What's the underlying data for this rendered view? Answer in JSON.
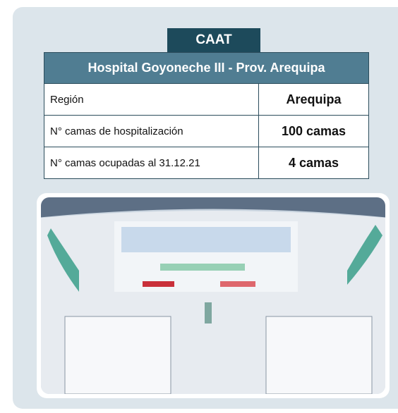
{
  "tab": "CAAT",
  "table": {
    "title": "Hospital Goyoneche III - Prov. Arequipa",
    "rows": [
      [
        "Región",
        "Arequipa"
      ],
      [
        "N° camas de hospitalización",
        "100 camas"
      ],
      [
        "N° camas ocupadas al 31.12.21",
        "4 camas"
      ]
    ]
  }
}
